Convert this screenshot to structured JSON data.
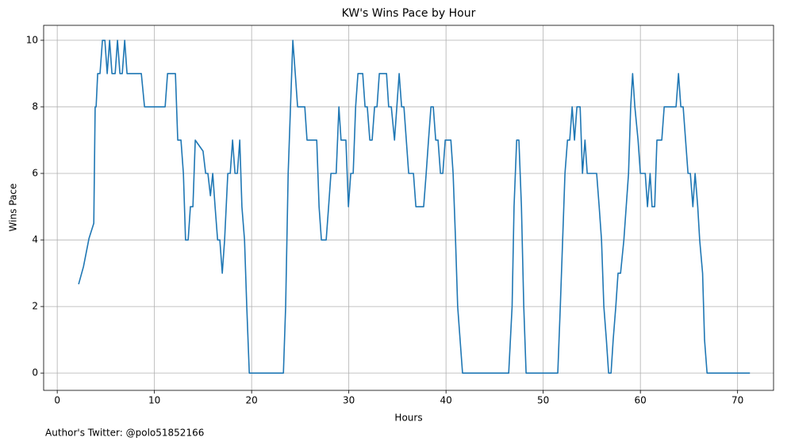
{
  "chart_data": {
    "type": "line",
    "title": "KW's Wins Pace by Hour",
    "x_label": "Hours",
    "y_label": "Wins Pace",
    "footnote": "Author's Twitter: @polo51852166",
    "color": "#1f77b4",
    "grid": true,
    "x": [
      2.2,
      2.7,
      3.27,
      3.76,
      3.9,
      4.0,
      4.16,
      4.4,
      4.65,
      4.9,
      5.14,
      5.39,
      5.63,
      5.96,
      6.2,
      6.45,
      6.69,
      6.94,
      7.18,
      8.65,
      8.98,
      11.1,
      11.35,
      12.16,
      12.4,
      12.73,
      12.98,
      13.2,
      13.47,
      13.7,
      13.96,
      14.2,
      15.0,
      15.27,
      15.5,
      15.76,
      16.0,
      16.24,
      16.5,
      16.73,
      16.98,
      17.22,
      17.55,
      17.8,
      18.04,
      18.29,
      18.53,
      18.78,
      19.0,
      19.27,
      19.5,
      19.76,
      23.27,
      23.5,
      23.76,
      24.0,
      24.24,
      24.49,
      24.73,
      25.47,
      25.7,
      26.7,
      26.94,
      27.18,
      27.67,
      27.92,
      28.16,
      28.7,
      28.98,
      29.2,
      29.7,
      29.96,
      30.2,
      30.45,
      30.7,
      30.94,
      31.43,
      31.67,
      31.9,
      32.16,
      32.4,
      32.65,
      32.9,
      33.14,
      33.88,
      34.1,
      34.37,
      34.7,
      34.94,
      35.18,
      35.43,
      35.67,
      36.16,
      36.65,
      36.9,
      37.7,
      37.96,
      38.2,
      38.45,
      38.69,
      38.94,
      39.18,
      39.43,
      39.67,
      39.92,
      40.5,
      40.73,
      40.98,
      41.2,
      41.7,
      46.45,
      46.8,
      47.0,
      47.27,
      47.5,
      47.76,
      48.0,
      48.24,
      51.5,
      51.76,
      52.0,
      52.24,
      52.5,
      52.73,
      52.98,
      53.22,
      53.47,
      53.8,
      54.04,
      54.3,
      54.53,
      55.5,
      55.76,
      56.0,
      56.24,
      56.5,
      56.73,
      56.98,
      57.2,
      57.47,
      57.7,
      57.96,
      58.3,
      58.78,
      59.0,
      59.2,
      59.43,
      59.76,
      60.0,
      60.5,
      60.73,
      61.0,
      61.2,
      61.47,
      61.7,
      62.2,
      62.45,
      63.67,
      63.92,
      64.16,
      64.4,
      64.65,
      64.9,
      65.14,
      65.4,
      65.63,
      65.9,
      66.1,
      66.4,
      66.6,
      66.86,
      71.27
    ],
    "values": [
      2.67,
      3.2,
      4.05,
      4.5,
      8,
      8,
      9,
      9,
      10,
      10,
      9,
      10,
      9,
      9,
      10,
      9,
      9,
      10,
      9,
      9,
      8,
      8,
      9,
      9,
      7,
      7,
      6,
      4,
      4,
      5,
      5,
      7,
      6.67,
      6,
      6,
      5.33,
      6,
      5,
      4,
      4,
      3,
      4,
      6,
      6,
      7,
      6,
      6,
      7,
      5,
      4,
      2,
      0,
      0,
      2,
      6,
      8,
      10,
      9,
      8,
      8,
      7,
      7,
      5,
      4,
      4,
      5,
      6,
      6,
      8,
      7,
      7,
      5,
      6,
      6,
      8,
      9,
      9,
      8,
      8,
      7,
      7,
      8,
      8,
      9,
      9,
      8,
      8,
      7,
      8,
      9,
      8,
      8,
      6,
      6,
      5,
      5,
      6,
      7,
      8,
      8,
      7,
      7,
      6,
      6,
      7,
      7,
      6,
      4,
      2,
      0,
      0,
      2,
      5,
      7,
      7,
      5,
      2,
      0,
      0,
      2,
      4,
      6,
      7,
      7,
      8,
      7,
      8,
      8,
      6,
      7,
      6,
      6,
      5,
      4,
      2,
      1,
      0,
      0,
      1,
      2,
      3,
      3,
      4,
      6,
      8,
      9,
      8,
      7,
      6,
      6,
      5,
      6,
      5,
      5,
      7,
      7,
      8,
      8,
      9,
      8,
      8,
      7,
      6,
      6,
      5,
      6,
      5,
      4,
      3,
      1,
      0,
      0
    ],
    "xlim": [
      -1.4,
      73.7
    ],
    "ylim": [
      -0.52,
      10.45
    ],
    "xticks": [
      0,
      10,
      20,
      30,
      40,
      50,
      60,
      70
    ],
    "yticks": [
      0,
      2,
      4,
      6,
      8,
      10
    ]
  }
}
